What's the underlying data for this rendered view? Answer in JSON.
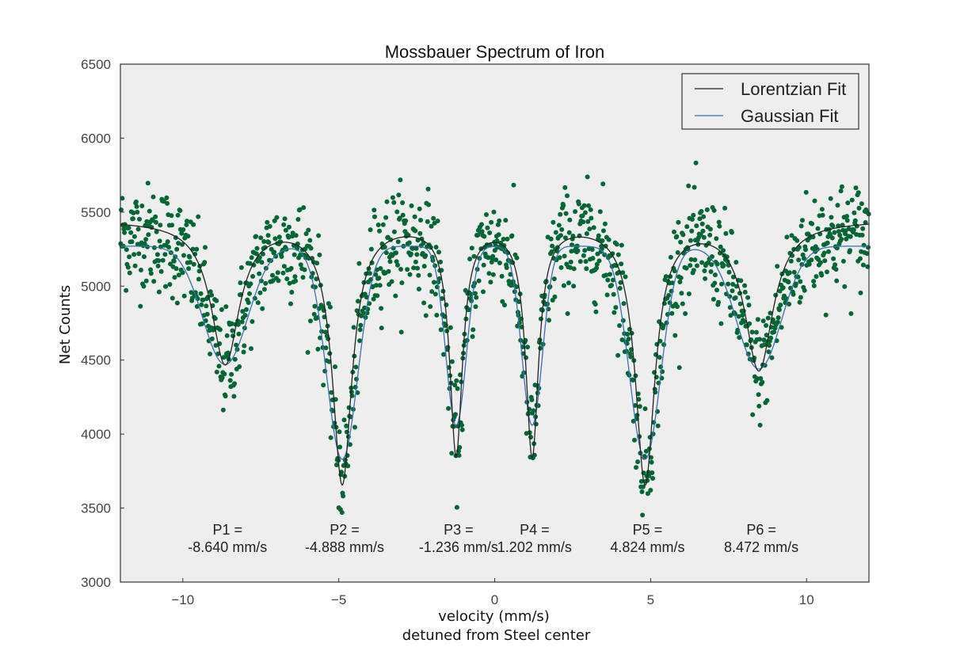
{
  "chart_data": {
    "type": "scatter",
    "title": "Mossbauer Spectrum of Iron",
    "xlabel": "velocity (mm/s)",
    "xlabel2": "detuned from Steel center",
    "ylabel": "Net Counts",
    "xlim": [
      -12,
      12
    ],
    "ylim": [
      3000,
      6500
    ],
    "xticks": [
      -10,
      -5,
      0,
      5,
      10
    ],
    "xtick_labels": [
      "−10",
      "−5",
      "0",
      "5",
      "10"
    ],
    "yticks": [
      3000,
      3500,
      4000,
      4500,
      5000,
      5500,
      6000,
      6500
    ],
    "ytick_labels": [
      "3000",
      "3500",
      "4000",
      "4500",
      "5000",
      "5500",
      "6000",
      "6500"
    ],
    "grid": false,
    "legend": {
      "placement": "top-right",
      "entries": [
        "Lorentzian Fit",
        "Gaussian Fit"
      ]
    },
    "colors": {
      "data": "#006633",
      "lorentzian": "#222222",
      "gaussian": "#3a6fb5",
      "background": "#eeeeee"
    },
    "peaks": [
      {
        "label": "P1 =",
        "value": "-8.640 mm/s",
        "x": -8.64
      },
      {
        "label": "P2 =",
        "value": "-4.888 mm/s",
        "x": -4.888
      },
      {
        "label": "P3 =",
        "value": "-1.236 mm/s",
        "x": -1.236
      },
      {
        "label": "P4 =",
        "value": "1.202 mm/s",
        "x": 1.202
      },
      {
        "label": "P5 =",
        "value": "4.824 mm/s",
        "x": 4.824
      },
      {
        "label": "P6 =",
        "value": "8.472 mm/s",
        "x": 8.472
      }
    ],
    "series": [
      {
        "name": "Lorentzian Fit",
        "kind": "line",
        "baseline": 5450,
        "dips": [
          {
            "center": -8.64,
            "depth": 960,
            "width": 0.55
          },
          {
            "center": -4.888,
            "depth": 1760,
            "width": 0.38
          },
          {
            "center": -1.236,
            "depth": 1550,
            "width": 0.25
          },
          {
            "center": 1.202,
            "depth": 1560,
            "width": 0.25
          },
          {
            "center": 4.824,
            "depth": 1760,
            "width": 0.38
          },
          {
            "center": 8.472,
            "depth": 1000,
            "width": 0.55
          }
        ]
      },
      {
        "name": "Gaussian Fit",
        "kind": "line",
        "baseline": 5270,
        "dips": [
          {
            "center": -8.64,
            "depth": 800,
            "width": 0.72
          },
          {
            "center": -4.888,
            "depth": 1440,
            "width": 0.5
          },
          {
            "center": -1.236,
            "depth": 1210,
            "width": 0.33
          },
          {
            "center": 1.202,
            "depth": 1210,
            "width": 0.33
          },
          {
            "center": 4.824,
            "depth": 1440,
            "width": 0.5
          },
          {
            "center": 8.472,
            "depth": 830,
            "width": 0.72
          }
        ]
      },
      {
        "name": "",
        "kind": "scatter",
        "points": 1400,
        "noise_sd": 180,
        "offset": 0
      }
    ]
  }
}
